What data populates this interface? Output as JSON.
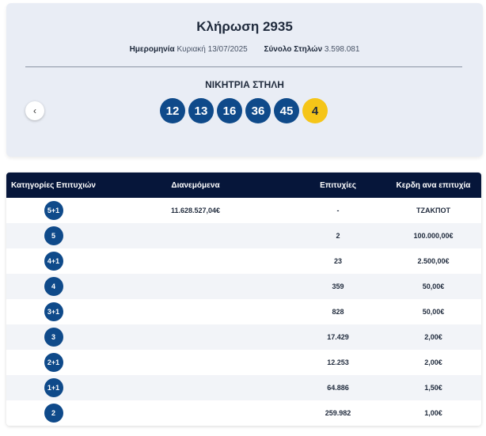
{
  "draw": {
    "title": "Κλήρωση 2935",
    "date_label": "Ημερομηνία",
    "date_value": "Κυριακή 13/07/2025",
    "columns_label": "Σύνολο Στηλών",
    "columns_value": "3.598.081",
    "winning_label": "ΝΙΚΗΤΡΙΑ ΣΤΗΛΗ",
    "prev_icon": "‹",
    "numbers": [
      "12",
      "13",
      "16",
      "36",
      "45"
    ],
    "bonus": "4",
    "colors": {
      "ball": "#0f4a8a",
      "bonus": "#f5c518",
      "header": "#06163a"
    }
  },
  "table": {
    "headers": [
      "Κατηγορίες Επιτυχιών",
      "Διανεμόμενα",
      "Επιτυχίες",
      "Κερδη ανα επιτυχία"
    ],
    "rows": [
      {
        "category": "5+1",
        "distributed": "11.628.527,04€",
        "winners": "-",
        "prize": "ΤΖΑΚΠΟΤ"
      },
      {
        "category": "5",
        "distributed": "",
        "winners": "2",
        "prize": "100.000,00€"
      },
      {
        "category": "4+1",
        "distributed": "",
        "winners": "23",
        "prize": "2.500,00€"
      },
      {
        "category": "4",
        "distributed": "",
        "winners": "359",
        "prize": "50,00€"
      },
      {
        "category": "3+1",
        "distributed": "",
        "winners": "828",
        "prize": "50,00€"
      },
      {
        "category": "3",
        "distributed": "",
        "winners": "17.429",
        "prize": "2,00€"
      },
      {
        "category": "2+1",
        "distributed": "",
        "winners": "12.253",
        "prize": "2,00€"
      },
      {
        "category": "1+1",
        "distributed": "",
        "winners": "64.886",
        "prize": "1,50€"
      },
      {
        "category": "2",
        "distributed": "",
        "winners": "259.982",
        "prize": "1,00€"
      }
    ]
  }
}
